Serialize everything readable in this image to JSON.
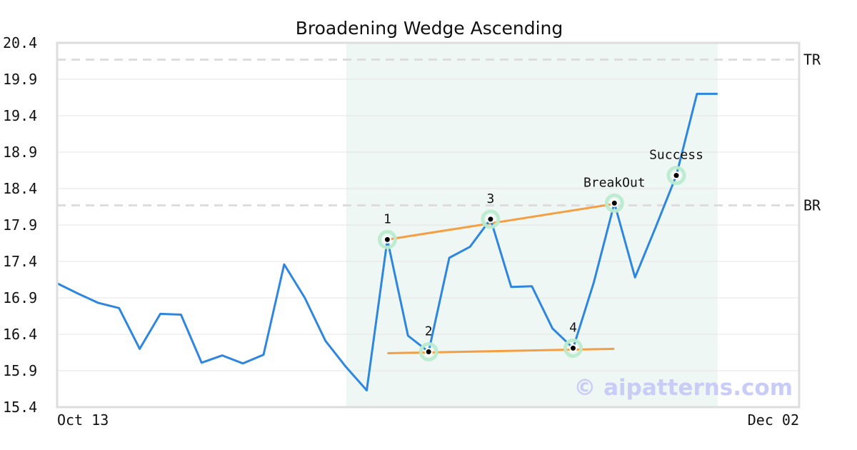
{
  "chart_data": {
    "type": "line",
    "title": "Broadening Wedge Ascending",
    "xlabel": "",
    "ylabel": "",
    "ylim": [
      15.4,
      20.4
    ],
    "yticks": [
      "20.4",
      "19.9",
      "19.4",
      "18.9",
      "18.4",
      "17.9",
      "17.4",
      "16.9",
      "16.4",
      "15.9",
      "15.4"
    ],
    "xtick_labels": [
      "Oct 13",
      "Dec 02"
    ],
    "grid": true,
    "series": [
      {
        "color": "#2e86de",
        "values": [
          17.1,
          16.96,
          16.83,
          16.76,
          16.2,
          16.68,
          16.67,
          16.01,
          16.11,
          16.0,
          16.12,
          17.36,
          16.9,
          16.31,
          15.95,
          15.63,
          17.7,
          16.38,
          16.16,
          17.45,
          17.6,
          17.98,
          17.05,
          17.06,
          16.48,
          16.21,
          17.11,
          18.2,
          17.18,
          17.87,
          18.58,
          19.7,
          19.7
        ]
      }
    ],
    "highlight_range": {
      "start_index": 14,
      "end_index": 32,
      "color": "#eef7f3"
    },
    "levels": [
      {
        "label": "TR",
        "value": 20.17
      },
      {
        "label": "BR",
        "value": 18.17
      }
    ],
    "trendlines": [
      {
        "color": "#f59e42",
        "from": {
          "index": 16,
          "value": 17.7
        },
        "to": {
          "index": 27,
          "value": 18.19
        }
      },
      {
        "color": "#f59e42",
        "from": {
          "index": 16,
          "value": 16.14
        },
        "to": {
          "index": 27,
          "value": 16.2
        }
      }
    ],
    "annotations": [
      {
        "label": "1",
        "index": 16,
        "value": 17.7
      },
      {
        "label": "2",
        "index": 18,
        "value": 16.16
      },
      {
        "label": "3",
        "index": 21,
        "value": 17.98
      },
      {
        "label": "4",
        "index": 25,
        "value": 16.21
      },
      {
        "label": "BreakOut",
        "index": 27,
        "value": 18.2
      },
      {
        "label": "Success",
        "index": 30,
        "value": 18.58
      }
    ],
    "watermark": "© aipatterns.com"
  }
}
